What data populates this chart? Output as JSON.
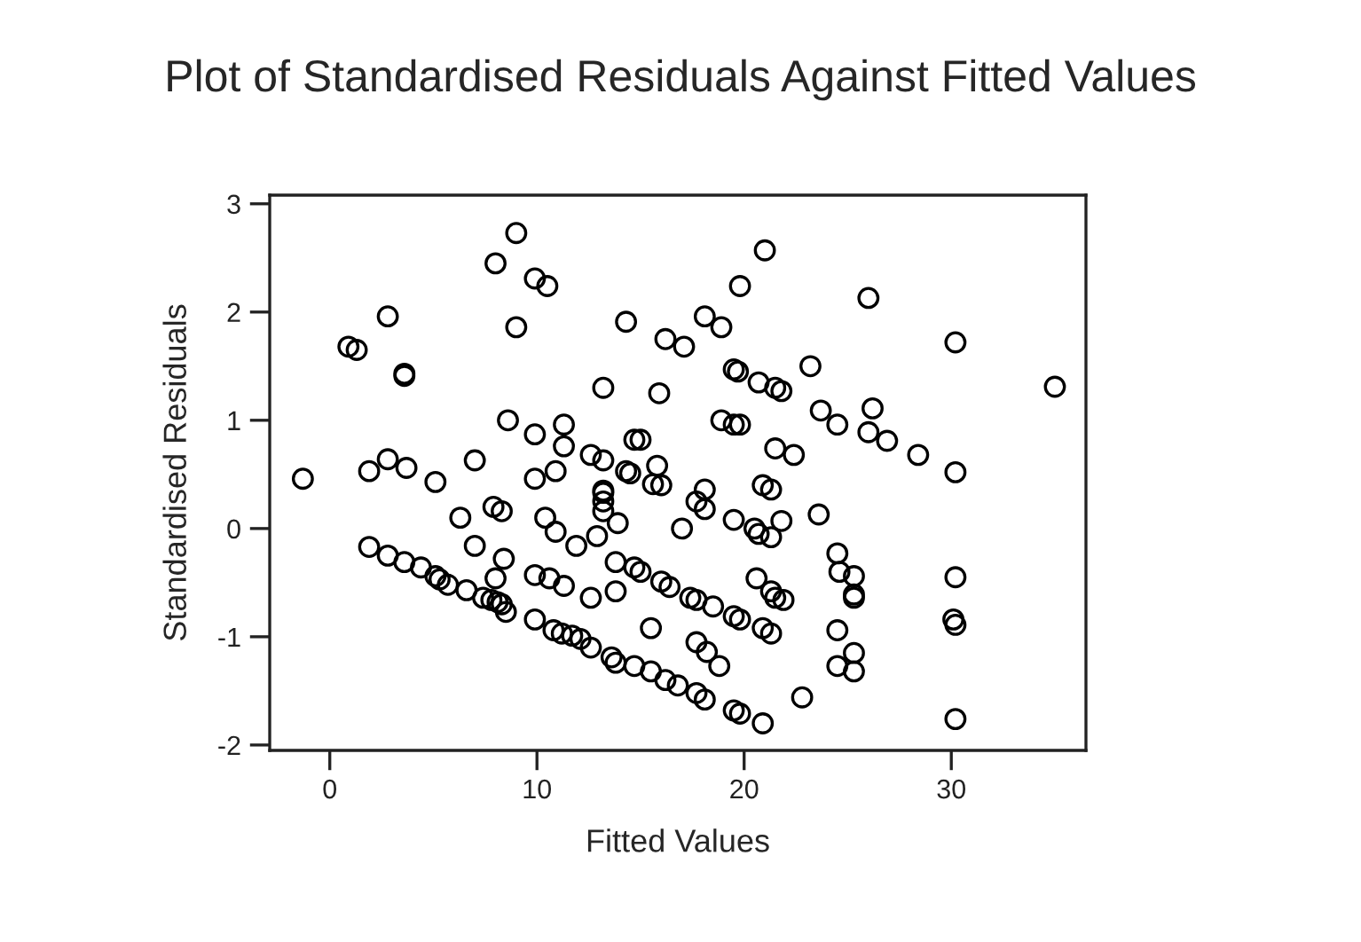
{
  "chart_data": {
    "type": "scatter",
    "title": "Plot of Standardised Residuals Against Fitted Values",
    "xlabel": "Fitted Values",
    "ylabel": "Standardised Residuals",
    "xlim": [
      -2.9,
      36.5
    ],
    "ylim": [
      -2.05,
      3.08
    ],
    "xticks": [
      0,
      10,
      20,
      30
    ],
    "yticks": [
      -2,
      -1,
      0,
      1,
      2,
      3
    ],
    "grid": false,
    "marker": "circle",
    "series": [
      {
        "color": "#000000",
        "x": [
          9.0,
          8.0,
          9.9,
          10.5,
          2.8,
          9.0,
          14.3,
          0.9,
          1.3,
          3.6,
          3.6,
          13.2,
          8.6,
          9.9,
          11.3,
          11.3,
          14.7,
          -1.3,
          1.9,
          2.8,
          3.7,
          5.1,
          7.0,
          9.9,
          10.9,
          12.6,
          13.2,
          14.3,
          14.5,
          13.2,
          21.0,
          19.8,
          26.0,
          18.1,
          18.9,
          16.2,
          17.1,
          30.2,
          23.2,
          19.5,
          19.7,
          20.7,
          21.5,
          21.8,
          15.9,
          23.7,
          24.5,
          26.2,
          26.0,
          26.9,
          28.4,
          30.2,
          18.9,
          19.5,
          19.8,
          15.0,
          21.5,
          22.4,
          15.8,
          15.6,
          16.0,
          18.1,
          20.9,
          21.3,
          35.0,
          6.3,
          7.9,
          8.3,
          7.0,
          8.4,
          8.0,
          10.4,
          10.9,
          11.9,
          12.9,
          13.9,
          13.2,
          13.2,
          13.2,
          13.8,
          13.8,
          12.6,
          9.9,
          10.6,
          11.3,
          1.9,
          2.8,
          3.6,
          4.4,
          5.1,
          5.3,
          5.7,
          6.6,
          7.4,
          7.8,
          8.1,
          8.3,
          8.5,
          9.9,
          10.8,
          11.2,
          11.7,
          12.1,
          12.6,
          13.6,
          13.8,
          14.7,
          17.7,
          18.1,
          17.0,
          19.5,
          20.5,
          20.7,
          21.3,
          21.8,
          23.6,
          24.5,
          24.6,
          25.3,
          25.3,
          25.3,
          30.2,
          30.1,
          30.2,
          24.5,
          24.5,
          25.3,
          25.3,
          22.8,
          30.2,
          20.9,
          19.5,
          19.8,
          14.7,
          15.0,
          16.0,
          16.4,
          17.4,
          17.7,
          18.5,
          19.5,
          19.8,
          20.6,
          21.3,
          21.5,
          21.9,
          20.9,
          21.3,
          15.5,
          17.7,
          18.2,
          18.8,
          15.5,
          16.2,
          16.8,
          17.7,
          18.1
        ],
        "values": [
          2.73,
          2.45,
          2.31,
          2.24,
          1.96,
          1.86,
          1.91,
          1.68,
          1.65,
          1.43,
          1.41,
          1.3,
          1.0,
          0.87,
          0.96,
          0.76,
          0.82,
          0.46,
          0.53,
          0.64,
          0.56,
          0.43,
          0.63,
          0.46,
          0.53,
          0.68,
          0.63,
          0.53,
          0.51,
          0.35,
          2.57,
          2.24,
          2.13,
          1.96,
          1.86,
          1.75,
          1.68,
          1.72,
          1.5,
          1.47,
          1.45,
          1.35,
          1.3,
          1.27,
          1.25,
          1.09,
          0.96,
          1.11,
          0.89,
          0.81,
          0.68,
          0.52,
          1.0,
          0.96,
          0.96,
          0.82,
          0.74,
          0.68,
          0.58,
          0.41,
          0.4,
          0.36,
          0.4,
          0.36,
          1.31,
          0.1,
          0.2,
          0.16,
          -0.16,
          -0.28,
          -0.46,
          0.1,
          -0.03,
          -0.16,
          -0.07,
          0.05,
          0.33,
          0.25,
          0.16,
          -0.31,
          -0.58,
          -0.64,
          -0.43,
          -0.46,
          -0.53,
          -0.17,
          -0.25,
          -0.31,
          -0.36,
          -0.44,
          -0.47,
          -0.52,
          -0.57,
          -0.64,
          -0.66,
          -0.68,
          -0.7,
          -0.77,
          -0.84,
          -0.94,
          -0.97,
          -0.99,
          -1.02,
          -1.1,
          -1.19,
          -1.24,
          -1.27,
          0.25,
          0.18,
          0.0,
          0.08,
          0.0,
          -0.05,
          -0.08,
          0.07,
          0.13,
          -0.23,
          -0.4,
          -0.44,
          -0.61,
          -0.64,
          -0.45,
          -0.84,
          -0.89,
          -0.94,
          -1.27,
          -1.15,
          -1.32,
          -1.56,
          -1.76,
          -1.8,
          -1.68,
          -1.71,
          -0.36,
          -0.4,
          -0.49,
          -0.54,
          -0.64,
          -0.66,
          -0.72,
          -0.81,
          -0.84,
          -0.46,
          -0.58,
          -0.64,
          -0.66,
          -0.92,
          -0.97,
          -0.92,
          -1.05,
          -1.14,
          -1.27,
          -1.32,
          -1.4,
          -1.45,
          -1.52,
          -1.58
        ]
      }
    ]
  }
}
